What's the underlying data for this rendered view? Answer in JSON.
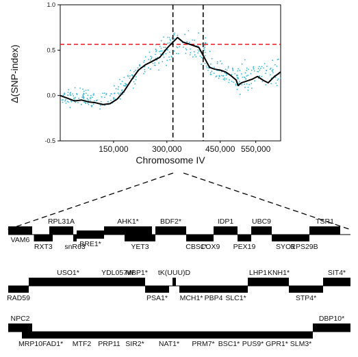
{
  "chart_data": {
    "type": "scatter",
    "xlabel": "Chromosome IV",
    "ylabel": "Δ(SNP-index)",
    "xlim": [
      0,
      620000
    ],
    "ylim": [
      -0.5,
      1.0
    ],
    "y_ticks": [
      "-0.5",
      "0.0",
      "0.5",
      "1.0"
    ],
    "x_ticks": [
      150000,
      300000,
      450000,
      550000
    ],
    "x_tick_labels": [
      "150,000",
      "300,000",
      "450,000",
      "550,000"
    ],
    "threshold": 0.565,
    "threshold_color": "#e8141b",
    "point_color": "#29b6d6",
    "fit_color": "#000000",
    "interval": [
      317000,
      402000
    ],
    "fit": {
      "x": [
        0,
        20000,
        40000,
        60000,
        80000,
        100000,
        120000,
        140000,
        160000,
        180000,
        200000,
        220000,
        240000,
        260000,
        280000,
        300000,
        315000,
        330000,
        345000,
        360000,
        375000,
        390000,
        405000,
        420000,
        435000,
        450000,
        465000,
        480000,
        495000,
        500000,
        510000,
        525000,
        540000,
        555000,
        570000,
        585000,
        600000,
        620000
      ],
      "y": [
        0.0,
        -0.03,
        -0.06,
        -0.05,
        -0.07,
        -0.08,
        -0.1,
        -0.09,
        -0.04,
        0.05,
        0.17,
        0.28,
        0.34,
        0.38,
        0.42,
        0.52,
        0.58,
        0.64,
        0.59,
        0.57,
        0.55,
        0.53,
        0.42,
        0.31,
        0.29,
        0.28,
        0.26,
        0.22,
        0.17,
        0.11,
        0.14,
        0.16,
        0.18,
        0.21,
        0.17,
        0.14,
        0.2,
        0.26
      ]
    },
    "scatter_segments": [
      {
        "x_from": 5000,
        "x_to": 140000,
        "center_from": 0.0,
        "center_to": -0.05,
        "spread": 0.07
      },
      {
        "x_from": 140000,
        "x_to": 240000,
        "center_from": -0.04,
        "center_to": 0.35,
        "spread": 0.08
      },
      {
        "x_from": 240000,
        "x_to": 300000,
        "center_from": 0.35,
        "center_to": 0.52,
        "spread": 0.12
      },
      {
        "x_from": 300000,
        "x_to": 410000,
        "center_from": 0.58,
        "center_to": 0.5,
        "spread": 0.12
      },
      {
        "x_from": 410000,
        "x_to": 500000,
        "center_from": 0.36,
        "center_to": 0.2,
        "spread": 0.1
      },
      {
        "x_from": 500000,
        "x_to": 620000,
        "center_from": 0.2,
        "center_to": 0.26,
        "spread": 0.12
      }
    ]
  },
  "gene_map": {
    "rows": [
      {
        "genes": [
          {
            "label": "VAM6",
            "from": 0.0,
            "to": 0.07,
            "level": "high",
            "pos": "below"
          },
          {
            "label": "RXT3",
            "from": 0.075,
            "to": 0.13,
            "level": "low",
            "pos": "below"
          },
          {
            "label": "RPL31A",
            "from": 0.12,
            "to": 0.19,
            "level": "high",
            "pos": "above"
          },
          {
            "label": "snR63",
            "from": 0.19,
            "to": 0.2,
            "level": "low",
            "pos": "below"
          },
          {
            "label": "BRE1*",
            "from": 0.2,
            "to": 0.28,
            "level": "mid",
            "pos": "below"
          },
          {
            "label": "AHK1*",
            "from": 0.28,
            "to": 0.42,
            "level": "high",
            "pos": "above"
          },
          {
            "label": "YET3",
            "from": 0.34,
            "to": 0.43,
            "level": "low",
            "pos": "below"
          },
          {
            "label": "BDF2*",
            "from": 0.43,
            "to": 0.52,
            "level": "high",
            "pos": "above"
          },
          {
            "label": "CBS1*",
            "from": 0.52,
            "to": 0.58,
            "level": "low",
            "pos": "below"
          },
          {
            "label": "COX9",
            "from": 0.58,
            "to": 0.6,
            "level": "low",
            "pos": "below"
          },
          {
            "label": "IDP1",
            "from": 0.6,
            "to": 0.67,
            "level": "high",
            "pos": "above"
          },
          {
            "label": "PEX19",
            "from": 0.67,
            "to": 0.71,
            "level": "low",
            "pos": "below"
          },
          {
            "label": "UBC9",
            "from": 0.71,
            "to": 0.77,
            "level": "high",
            "pos": "above"
          },
          {
            "label": "SYO1",
            "from": 0.77,
            "to": 0.85,
            "level": "low",
            "pos": "below"
          },
          {
            "label": "RPS29B",
            "from": 0.85,
            "to": 0.88,
            "level": "low",
            "pos": "below"
          },
          {
            "label": "TSR1",
            "from": 0.88,
            "to": 0.97,
            "level": "high",
            "pos": "above"
          }
        ]
      },
      {
        "genes": [
          {
            "label": "RAD59",
            "from": 0.0,
            "to": 0.06,
            "level": "low",
            "pos": "below"
          },
          {
            "label": "USO1*",
            "from": 0.06,
            "to": 0.29,
            "level": "high",
            "pos": "above"
          },
          {
            "label": "YDL057W",
            "from": 0.29,
            "to": 0.35,
            "level": "high",
            "pos": "above"
          },
          {
            "label": "MBP1*",
            "from": 0.35,
            "to": 0.4,
            "level": "high",
            "pos": "above"
          },
          {
            "label": "PSA1*",
            "from": 0.4,
            "to": 0.47,
            "level": "low",
            "pos": "below"
          },
          {
            "label": "tK(UUU)D",
            "from": 0.48,
            "to": 0.49,
            "level": "high",
            "pos": "above"
          },
          {
            "label": "MCH1*",
            "from": 0.5,
            "to": 0.57,
            "level": "low",
            "pos": "below"
          },
          {
            "label": "PBP4",
            "from": 0.57,
            "to": 0.63,
            "level": "low",
            "pos": "below"
          },
          {
            "label": "SLC1*",
            "from": 0.63,
            "to": 0.7,
            "level": "low",
            "pos": "below"
          },
          {
            "label": "LHP1",
            "from": 0.7,
            "to": 0.76,
            "level": "high",
            "pos": "above"
          },
          {
            "label": "KNH1*",
            "from": 0.76,
            "to": 0.82,
            "level": "high",
            "pos": "above"
          },
          {
            "label": "STP4*",
            "from": 0.82,
            "to": 0.92,
            "level": "low",
            "pos": "below"
          },
          {
            "label": "SIT4*",
            "from": 0.92,
            "to": 1.0,
            "level": "high",
            "pos": "above"
          }
        ]
      },
      {
        "genes": [
          {
            "label": "NPC2",
            "from": 0.0,
            "to": 0.07,
            "level": "high",
            "pos": "above"
          },
          {
            "label": "MRP10",
            "from": 0.04,
            "to": 0.09,
            "level": "low",
            "pos": "below"
          },
          {
            "label": "FAD1*",
            "from": 0.09,
            "to": 0.17,
            "level": "low",
            "pos": "below"
          },
          {
            "label": "MTF2",
            "from": 0.17,
            "to": 0.26,
            "level": "low",
            "pos": "below"
          },
          {
            "label": "PRP11",
            "from": 0.26,
            "to": 0.33,
            "level": "low",
            "pos": "below"
          },
          {
            "label": "SIR2*",
            "from": 0.33,
            "to": 0.41,
            "level": "low",
            "pos": "below"
          },
          {
            "label": "NAT1*",
            "from": 0.41,
            "to": 0.53,
            "level": "low",
            "pos": "below"
          },
          {
            "label": "PRM7*",
            "from": 0.53,
            "to": 0.61,
            "level": "low",
            "pos": "below"
          },
          {
            "label": "BSC1*",
            "from": 0.61,
            "to": 0.68,
            "level": "low",
            "pos": "below"
          },
          {
            "label": "PUS9*",
            "from": 0.68,
            "to": 0.75,
            "level": "low",
            "pos": "below"
          },
          {
            "label": "GPR1*",
            "from": 0.75,
            "to": 0.82,
            "level": "low",
            "pos": "below"
          },
          {
            "label": "SLM3*",
            "from": 0.82,
            "to": 0.89,
            "level": "low",
            "pos": "below"
          },
          {
            "label": "DBP10*",
            "from": 0.89,
            "to": 1.0,
            "level": "high",
            "pos": "above"
          }
        ]
      }
    ]
  }
}
